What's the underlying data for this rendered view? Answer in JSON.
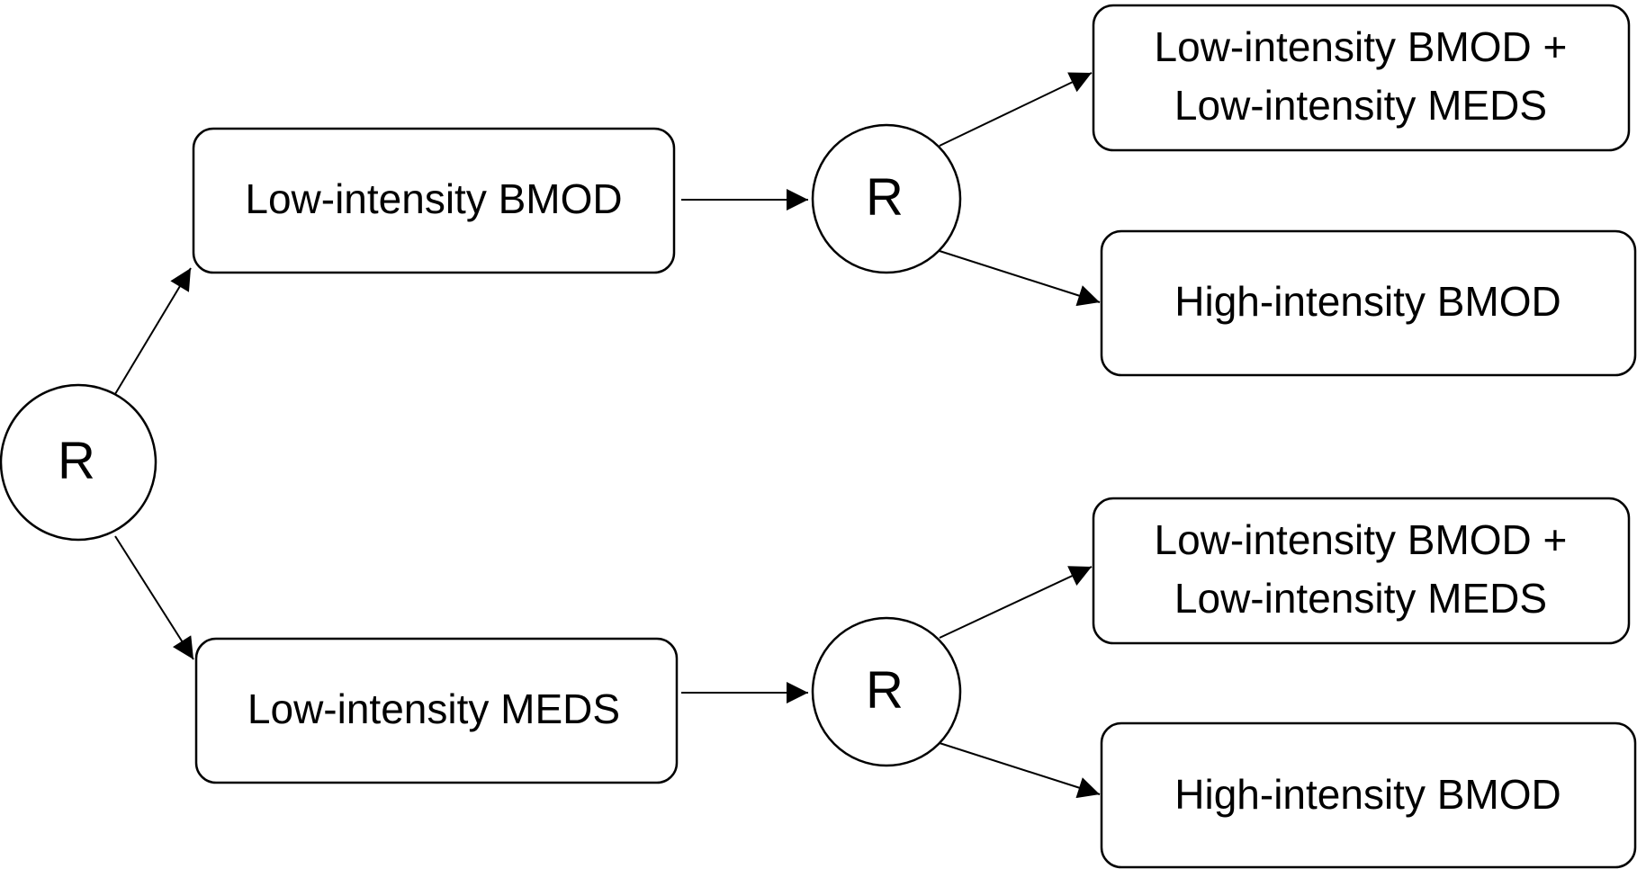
{
  "diagram": {
    "randomization_label": "R",
    "first_stage": {
      "top": "Low-intensity BMOD",
      "bottom": "Low-intensity MEDS"
    },
    "second_stage": {
      "top_option_1_line1": "Low-intensity BMOD +",
      "top_option_1_line2": "Low-intensity MEDS",
      "top_option_2": "High-intensity BMOD",
      "bottom_option_1_line1": "Low-intensity BMOD +",
      "bottom_option_1_line2": "Low-intensity MEDS",
      "bottom_option_2": "High-intensity BMOD"
    }
  }
}
